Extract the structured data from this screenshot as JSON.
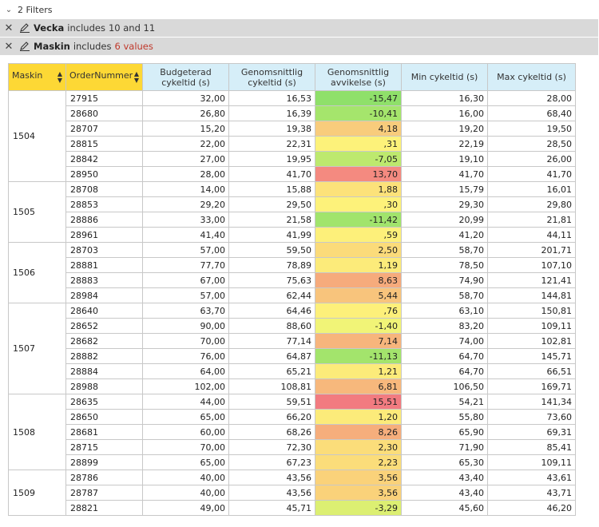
{
  "filters_header": {
    "label": "2 Filters"
  },
  "filters": [
    {
      "field": "Vecka",
      "condition": "includes",
      "value": "10 and 11",
      "value_color": "#333333"
    },
    {
      "field": "Maskin",
      "condition": "includes",
      "value": "6 values",
      "value_color": "#c0392b"
    }
  ],
  "columns": [
    "Maskin",
    "OrderNummer",
    "Budgeterad cykeltid (s)",
    "Genomsnittlig cykeltid (s)",
    "Genomsnittlig avvikelse (s)",
    "Min cykeltid (s)",
    "Max cykeltid (s)"
  ],
  "groups": [
    {
      "maskin": "1504",
      "rows": [
        {
          "order": "27915",
          "budget": "32,00",
          "avg": "16,53",
          "dev": "-15,47",
          "color": "#8fe06a",
          "min": "16,30",
          "max": "28,00"
        },
        {
          "order": "28680",
          "budget": "26,80",
          "avg": "16,39",
          "dev": "-10,41",
          "color": "#a5e56c",
          "min": "16,00",
          "max": "68,40"
        },
        {
          "order": "28707",
          "budget": "15,20",
          "avg": "19,38",
          "dev": "4,18",
          "color": "#f8cc7c",
          "min": "19,20",
          "max": "19,50"
        },
        {
          "order": "28815",
          "budget": "22,00",
          "avg": "22,31",
          "dev": ",31",
          "color": "#fdf27a",
          "min": "22,19",
          "max": "28,50"
        },
        {
          "order": "28842",
          "budget": "27,00",
          "avg": "19,95",
          "dev": "-7,05",
          "color": "#bde96e",
          "min": "19,10",
          "max": "26,00"
        },
        {
          "order": "28950",
          "budget": "28,00",
          "avg": "41,70",
          "dev": "13,70",
          "color": "#f48a80",
          "min": "41,70",
          "max": "41,70"
        }
      ]
    },
    {
      "maskin": "1505",
      "rows": [
        {
          "order": "28708",
          "budget": "14,00",
          "avg": "15,88",
          "dev": "1,88",
          "color": "#fce27a",
          "min": "15,79",
          "max": "16,01"
        },
        {
          "order": "28853",
          "budget": "29,20",
          "avg": "29,50",
          "dev": ",30",
          "color": "#fdf27a",
          "min": "29,30",
          "max": "29,80"
        },
        {
          "order": "28886",
          "budget": "33,00",
          "avg": "21,58",
          "dev": "-11,42",
          "color": "#a1e46c",
          "min": "20,99",
          "max": "21,81"
        },
        {
          "order": "28961",
          "budget": "41,40",
          "avg": "41,99",
          "dev": ",59",
          "color": "#fdf07a",
          "min": "41,20",
          "max": "44,11"
        }
      ]
    },
    {
      "maskin": "1506",
      "rows": [
        {
          "order": "28703",
          "budget": "57,00",
          "avg": "59,50",
          "dev": "2,50",
          "color": "#fbdb7a",
          "min": "58,70",
          "max": "201,71"
        },
        {
          "order": "28881",
          "budget": "77,70",
          "avg": "78,89",
          "dev": "1,19",
          "color": "#fceb7a",
          "min": "78,50",
          "max": "107,10"
        },
        {
          "order": "28883",
          "budget": "67,00",
          "avg": "75,63",
          "dev": "8,63",
          "color": "#f6ab7c",
          "min": "74,90",
          "max": "121,41"
        },
        {
          "order": "28984",
          "budget": "57,00",
          "avg": "62,44",
          "dev": "5,44",
          "color": "#f8c47c",
          "min": "58,70",
          "max": "144,81"
        }
      ]
    },
    {
      "maskin": "1507",
      "rows": [
        {
          "order": "28640",
          "budget": "63,70",
          "avg": "64,46",
          "dev": ",76",
          "color": "#fdf07a",
          "min": "63,10",
          "max": "150,81"
        },
        {
          "order": "28652",
          "budget": "90,00",
          "avg": "88,60",
          "dev": "-1,40",
          "color": "#f1f477",
          "min": "83,20",
          "max": "109,11"
        },
        {
          "order": "28682",
          "budget": "70,00",
          "avg": "77,14",
          "dev": "7,14",
          "color": "#f7b57c",
          "min": "74,00",
          "max": "102,81"
        },
        {
          "order": "28882",
          "budget": "76,00",
          "avg": "64,87",
          "dev": "-11,13",
          "color": "#a3e46c",
          "min": "64,70",
          "max": "145,71"
        },
        {
          "order": "28884",
          "budget": "64,00",
          "avg": "65,21",
          "dev": "1,21",
          "color": "#fceb7a",
          "min": "64,70",
          "max": "66,51"
        },
        {
          "order": "28988",
          "budget": "102,00",
          "avg": "108,81",
          "dev": "6,81",
          "color": "#f7b87c",
          "min": "106,50",
          "max": "169,71"
        }
      ]
    },
    {
      "maskin": "1508",
      "rows": [
        {
          "order": "28635",
          "budget": "44,00",
          "avg": "59,51",
          "dev": "15,51",
          "color": "#f27b80",
          "min": "54,21",
          "max": "141,34"
        },
        {
          "order": "28650",
          "budget": "65,00",
          "avg": "66,20",
          "dev": "1,20",
          "color": "#fceb7a",
          "min": "55,80",
          "max": "73,60"
        },
        {
          "order": "28681",
          "budget": "60,00",
          "avg": "68,26",
          "dev": "8,26",
          "color": "#f6ae7c",
          "min": "65,90",
          "max": "69,31"
        },
        {
          "order": "28715",
          "budget": "70,00",
          "avg": "72,30",
          "dev": "2,30",
          "color": "#fbdd7a",
          "min": "71,90",
          "max": "85,41"
        },
        {
          "order": "28899",
          "budget": "65,00",
          "avg": "67,23",
          "dev": "2,23",
          "color": "#fbdd7a",
          "min": "65,30",
          "max": "109,11"
        }
      ]
    },
    {
      "maskin": "1509",
      "rows": [
        {
          "order": "28786",
          "budget": "40,00",
          "avg": "43,56",
          "dev": "3,56",
          "color": "#fad27a",
          "min": "43,40",
          "max": "43,61"
        },
        {
          "order": "28787",
          "budget": "40,00",
          "avg": "43,56",
          "dev": "3,56",
          "color": "#fad27a",
          "min": "43,40",
          "max": "43,71"
        },
        {
          "order": "28821",
          "budget": "49,00",
          "avg": "45,71",
          "dev": "-3,29",
          "color": "#dcef72",
          "min": "45,60",
          "max": "46,20"
        }
      ]
    }
  ]
}
